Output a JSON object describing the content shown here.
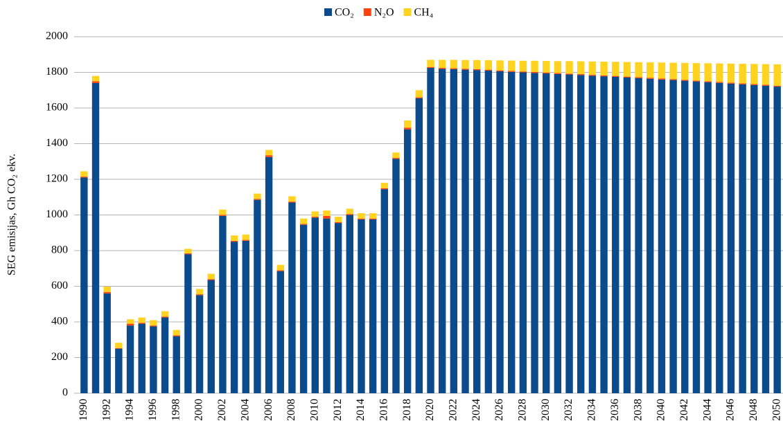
{
  "chart_data": {
    "type": "stacked-bar",
    "y_label": "SEG emisijas, Gh CO₂ ekv.",
    "categories": [
      "1990",
      null,
      "1992",
      null,
      "1994",
      null,
      "1996",
      null,
      "1998",
      null,
      "2000",
      null,
      "2002",
      null,
      "2004",
      null,
      "2006",
      null,
      "2008",
      null,
      "2010",
      null,
      "2012",
      null,
      "2014",
      null,
      "2016",
      null,
      "2018",
      null,
      "2020",
      null,
      "2022",
      null,
      "2024",
      null,
      "2026",
      null,
      "2028",
      null,
      "2030",
      null,
      "2032",
      null,
      "2034",
      null,
      "2036",
      null,
      "2038",
      null,
      "2040",
      null,
      "2042",
      null,
      "2044",
      null,
      "2046",
      null,
      "2048",
      null,
      "2050"
    ],
    "series": [
      {
        "name": "CO₂",
        "color": "#0b4a8b",
        "values": [
          1210,
          1740,
          560,
          250,
          380,
          390,
          375,
          425,
          320,
          780,
          550,
          635,
          995,
          850,
          855,
          1085,
          1325,
          685,
          1070,
          945,
          985,
          980,
          955,
          1000,
          975,
          975,
          1145,
          1315,
          1480,
          1655,
          1825,
          1820,
          1818,
          1815,
          1813,
          1810,
          1806,
          1803,
          1800,
          1797,
          1794,
          1791,
          1788,
          1785,
          1781,
          1778,
          1775,
          1771,
          1768,
          1764,
          1760,
          1757,
          1753,
          1749,
          1745,
          1741,
          1737,
          1733,
          1729,
          1725,
          1720
        ]
      },
      {
        "name": "N₂O",
        "color": "#ff420e",
        "values": [
          5,
          10,
          8,
          3,
          10,
          5,
          5,
          5,
          5,
          5,
          5,
          5,
          5,
          5,
          5,
          5,
          10,
          5,
          5,
          5,
          5,
          15,
          5,
          5,
          5,
          5,
          5,
          5,
          10,
          5,
          5,
          5,
          5,
          5,
          5,
          5,
          5,
          5,
          5,
          5,
          5,
          5,
          5,
          5,
          5,
          5,
          5,
          5,
          5,
          5,
          5,
          5,
          5,
          5,
          5,
          5,
          5,
          5,
          5,
          5,
          5
        ]
      },
      {
        "name": "CH₄",
        "color": "#ffd320",
        "values": [
          30,
          30,
          30,
          30,
          25,
          30,
          30,
          30,
          30,
          25,
          30,
          30,
          30,
          30,
          30,
          30,
          30,
          30,
          30,
          30,
          30,
          30,
          30,
          30,
          30,
          30,
          30,
          30,
          40,
          40,
          40,
          45,
          47,
          49,
          51,
          53,
          56,
          58,
          60,
          63,
          65,
          67,
          70,
          72,
          75,
          77,
          79,
          82,
          84,
          87,
          90,
          92,
          95,
          98,
          101,
          104,
          107,
          110,
          113,
          116,
          120
        ]
      }
    ],
    "ylim": [
      0,
      2000
    ],
    "yticks": [
      0,
      200,
      400,
      600,
      800,
      1000,
      1200,
      1400,
      1600,
      1800,
      2000
    ],
    "grid": true,
    "legend": "top"
  }
}
